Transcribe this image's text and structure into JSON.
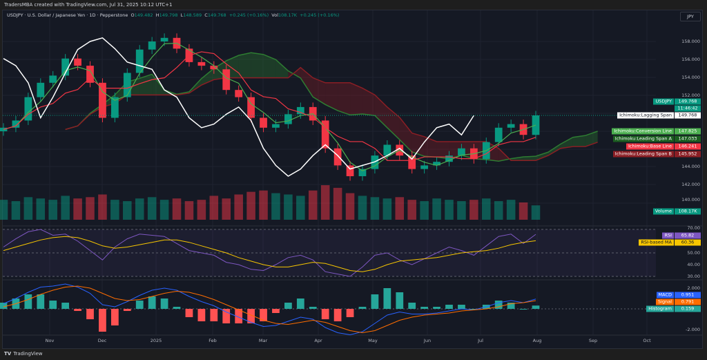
{
  "header": {
    "credit": "TradersMBA created with TradingView.com, Jul 31, 2025 10:12 UTC+1"
  },
  "legend": {
    "symbol": "USDJPY · U.S. Dollar / Japanese Yen · 1D · Pepperstone",
    "o_label": "O",
    "o": "149.482",
    "h_label": "H",
    "h": "149.798",
    "l_label": "L",
    "l": "148.589",
    "c_label": "C",
    "c": "149.768",
    "change": "+0.245 (+0.16%)",
    "vol_label": "Vol",
    "vol": "108.17K",
    "vol_change": "+0.245 (+0.16%)"
  },
  "currency_button": "JPY",
  "footer": {
    "logo": "TradingView"
  },
  "price_axis": [
    "158.000",
    "156.000",
    "154.000",
    "152.000",
    "144.000",
    "142.000",
    "140.000"
  ],
  "rsi_axis": [
    "70.00",
    "50.00",
    "40.00",
    "30.00"
  ],
  "macd_axis": [
    "2.000",
    "-2.000"
  ],
  "time_axis": [
    "Nov",
    "Dec",
    "2025",
    "Feb",
    "Mar",
    "Apr",
    "May",
    "Jun",
    "Jul",
    "Aug",
    "Sep",
    "Oct"
  ],
  "tags": {
    "symbol": {
      "name": "USDJPY",
      "value": "149.768",
      "countdown": "11:46:42"
    },
    "lagging": {
      "name": "Ichimoku:Lagging Span",
      "value": "149.768"
    },
    "conversion": {
      "name": "Ichimoku:Conversion Line",
      "value": "147.825"
    },
    "span_a": {
      "name": "Ichimoku:Leading Span A",
      "value": "147.033"
    },
    "base": {
      "name": "Ichimoku:Base Line",
      "value": "146.241"
    },
    "span_b": {
      "name": "Ichimoku:Leading Span B",
      "value": "145.952"
    },
    "volume": {
      "name": "Volume",
      "value": "108.17K"
    },
    "rsi": {
      "name": "RSI",
      "value": "65.82"
    },
    "rsi_ma": {
      "name": "RSI-based MA",
      "value": "60.36"
    },
    "macd": {
      "name": "MACD",
      "value": "0.951"
    },
    "signal": {
      "name": "Signal",
      "value": "0.791"
    },
    "histogram": {
      "name": "Histogram",
      "value": "0.159"
    }
  },
  "colors": {
    "up": "#089981",
    "down": "#f23645",
    "conversion": "#4caf50",
    "base": "#f23645",
    "span_a": "#2e7d32",
    "span_b": "#8b1e24",
    "lagging": "#ffffff",
    "rsi": "#7e57c2",
    "rsi_ma": "#f7c600",
    "macd": "#2962ff",
    "signal": "#ff6d00"
  },
  "chart_data": {
    "type": "candlestick",
    "symbol": "USDJPY",
    "interval": "1D",
    "ylim": [
      139,
      159.5
    ],
    "close": [
      148.4,
      149.2,
      151.8,
      153.4,
      154.2,
      156.1,
      155.3,
      153.4,
      149.5,
      151.8,
      154.5,
      157.1,
      158.0,
      158.4,
      157.2,
      155.7,
      155.3,
      154.9,
      152.6,
      151.8,
      149.5,
      148.4,
      148.8,
      149.9,
      150.7,
      149.2,
      146.1,
      144.2,
      143.0,
      143.8,
      145.3,
      146.5,
      145.3,
      143.8,
      144.2,
      144.6,
      145.3,
      146.1,
      144.9,
      146.8,
      148.4,
      148.8,
      147.6,
      149.768
    ],
    "volume_k": [
      150,
      140,
      170,
      160,
      150,
      180,
      160,
      170,
      190,
      150,
      140,
      160,
      170,
      150,
      160,
      140,
      150,
      180,
      160,
      190,
      210,
      220,
      200,
      190,
      180,
      220,
      260,
      240,
      200,
      180,
      170,
      160,
      170,
      150,
      140,
      160,
      150,
      140,
      150,
      160,
      140,
      150,
      130,
      108.17
    ],
    "rsi": [
      55,
      62,
      68,
      70,
      65,
      66,
      60,
      52,
      44,
      55,
      62,
      66,
      65,
      64,
      58,
      52,
      50,
      48,
      42,
      40,
      36,
      35,
      40,
      46,
      48,
      44,
      34,
      32,
      30,
      38,
      48,
      50,
      44,
      40,
      45,
      50,
      55,
      52,
      48,
      56,
      64,
      66,
      58,
      65.82
    ],
    "rsi_ma": [
      52,
      55,
      58,
      61,
      63,
      64,
      63,
      60,
      56,
      54,
      55,
      57,
      59,
      61,
      61,
      59,
      56,
      53,
      50,
      46,
      43,
      40,
      38,
      38,
      40,
      42,
      41,
      38,
      35,
      34,
      36,
      40,
      43,
      44,
      45,
      46,
      48,
      50,
      51,
      52,
      54,
      57,
      59,
      60.36
    ],
    "macd": [
      0.5,
      1.0,
      1.6,
      2.1,
      2.2,
      2.4,
      2.1,
      1.5,
      0.4,
      0.2,
      0.7,
      1.3,
      1.8,
      2.0,
      1.8,
      1.2,
      0.7,
      0.3,
      -0.3,
      -0.8,
      -1.3,
      -1.7,
      -1.6,
      -1.2,
      -0.8,
      -1.0,
      -1.8,
      -2.3,
      -2.5,
      -2.2,
      -1.4,
      -0.6,
      -0.3,
      -0.5,
      -0.5,
      -0.4,
      -0.2,
      0.0,
      -0.1,
      0.2,
      0.6,
      0.8,
      0.6,
      0.951
    ],
    "signal": [
      0.2,
      0.5,
      0.9,
      1.4,
      1.8,
      2.1,
      2.2,
      2.0,
      1.5,
      1.0,
      0.8,
      0.9,
      1.2,
      1.5,
      1.7,
      1.6,
      1.3,
      0.9,
      0.4,
      -0.1,
      -0.6,
      -1.1,
      -1.4,
      -1.5,
      -1.3,
      -1.1,
      -1.3,
      -1.7,
      -2.1,
      -2.3,
      -2.1,
      -1.6,
      -1.1,
      -0.8,
      -0.6,
      -0.5,
      -0.4,
      -0.2,
      -0.1,
      0.0,
      0.2,
      0.5,
      0.6,
      0.791
    ],
    "rsi_levels": [
      70,
      50,
      30
    ],
    "macd_ylim": [
      -2.6,
      2.6
    ]
  }
}
